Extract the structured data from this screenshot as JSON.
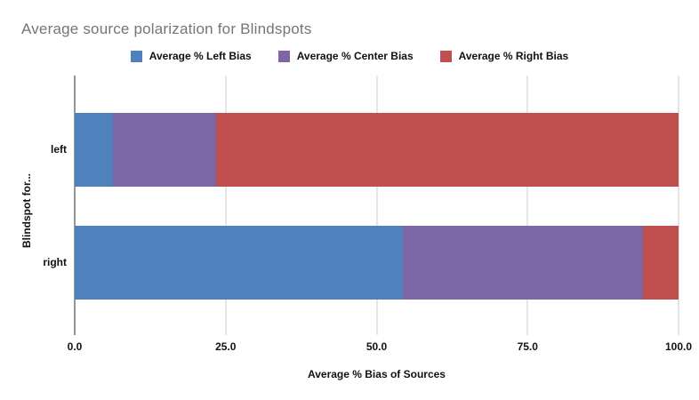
{
  "chart_data": {
    "type": "bar",
    "orientation": "horizontal",
    "stacked": true,
    "title": "Average source polarization for Blindspots",
    "xlabel": "Average % Bias of Sources",
    "ylabel": "Blindspot for...",
    "categories": [
      "left",
      "right"
    ],
    "series": [
      {
        "name": "Average % Left Bias",
        "color": "#4f81bd",
        "values": [
          6.4,
          54.3
        ]
      },
      {
        "name": "Average % Center Bias",
        "color": "#7d66a5",
        "values": [
          17.0,
          39.8
        ]
      },
      {
        "name": "Average % Right Bias",
        "color": "#c0504d",
        "values": [
          76.6,
          5.9
        ]
      }
    ],
    "xlim": [
      0,
      100
    ],
    "xticks": [
      "0.0",
      "25.0",
      "50.0",
      "75.0",
      "100.0"
    ],
    "grid": true,
    "legend_position": "top",
    "colors": {
      "title_text": "#757575",
      "axis_text": "#111111",
      "gridline": "#cccccc",
      "axis_line": "#2b2b2b",
      "background": "#ffffff"
    }
  }
}
